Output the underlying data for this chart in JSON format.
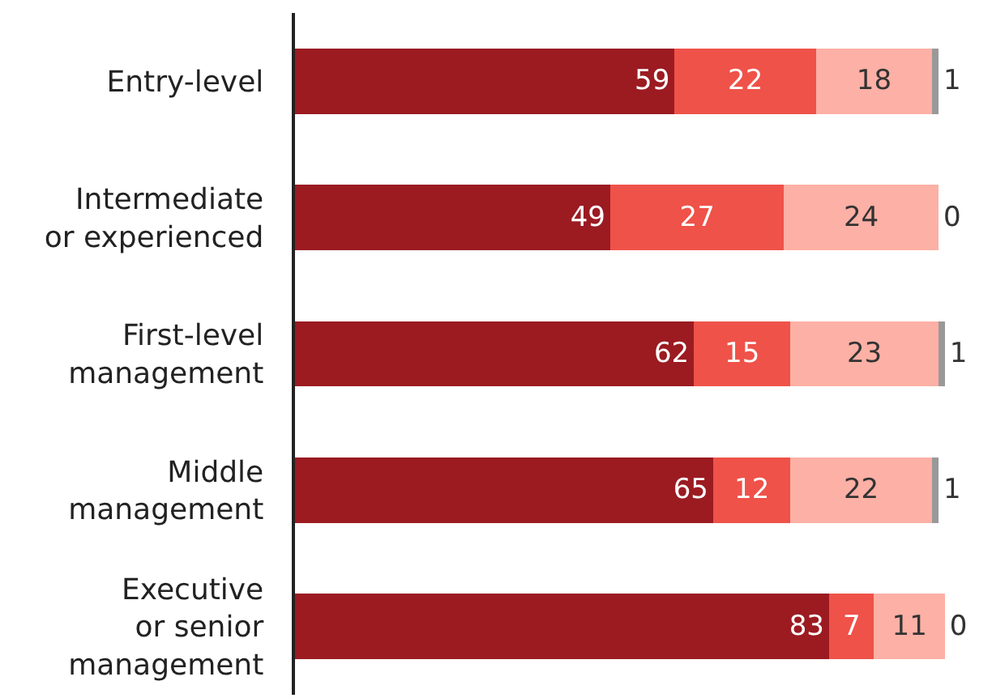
{
  "chart_data": {
    "type": "bar",
    "orientation": "horizontal",
    "stacked": true,
    "data_labels": true,
    "tick_labels": "y",
    "categories": [
      "Entry-level",
      "Intermediate\nor experienced",
      "First-level\nmanagement",
      "Middle\nmanagement",
      "Executive\nor senior\nmanagement"
    ],
    "series": [
      {
        "color": "#9b1b21",
        "values": [
          59,
          49,
          62,
          65,
          83
        ]
      },
      {
        "color": "#ef5249",
        "values": [
          22,
          27,
          15,
          12,
          7
        ]
      },
      {
        "color": "#fdb0a5",
        "values": [
          18,
          24,
          23,
          22,
          11
        ]
      },
      {
        "color": "#999999",
        "values": [
          1,
          0,
          1,
          1,
          0
        ]
      }
    ]
  }
}
